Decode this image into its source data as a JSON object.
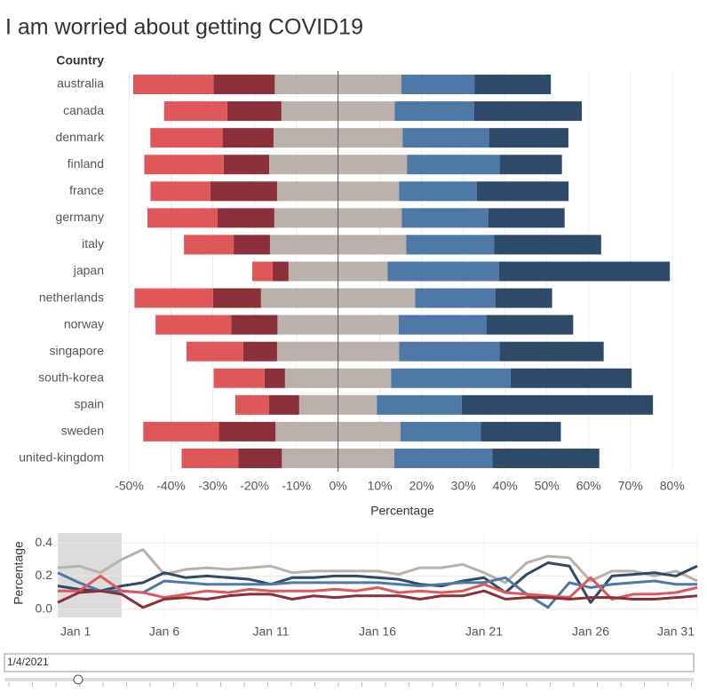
{
  "chart_data": [
    {
      "type": "diverging",
      "title": "I am worried about getting COVID19",
      "category_header": "Country",
      "xlabel": "Percentage",
      "categories": [
        "australia",
        "canada",
        "denmark",
        "finland",
        "france",
        "germany",
        "italy",
        "japan",
        "netherlands",
        "norway",
        "singapore",
        "south-korea",
        "spain",
        "sweden",
        "united-kingdom"
      ],
      "series": [
        {
          "color": "#8b2f3a",
          "side": "left",
          "values": [
            14.7,
            13.0,
            12.2,
            10.9,
            16.0,
            13.6,
            8.7,
            3.8,
            11.5,
            11.1,
            8.1,
            4.9,
            7.2,
            13.6,
            10.4
          ]
        },
        {
          "color": "#e05759",
          "side": "left",
          "values": [
            19.2,
            15.1,
            17.3,
            19.0,
            14.3,
            16.8,
            11.9,
            4.9,
            18.8,
            18.1,
            13.6,
            12.2,
            8.1,
            18.1,
            13.6
          ]
        },
        {
          "color": "#bab0ac",
          "side": "center",
          "values": [
            30.3,
            27.1,
            30.9,
            33.0,
            29.2,
            30.5,
            32.6,
            23.7,
            36.9,
            29.0,
            29.2,
            25.4,
            18.6,
            29.9,
            26.9
          ]
        },
        {
          "color": "#4e79a7",
          "side": "right",
          "values": [
            17.5,
            19.0,
            20.7,
            22.2,
            18.6,
            20.7,
            21.1,
            26.7,
            19.2,
            21.1,
            24.1,
            28.6,
            20.3,
            19.2,
            23.5
          ]
        },
        {
          "color": "#2e4a68",
          "side": "right",
          "values": [
            18.3,
            25.8,
            19.0,
            14.9,
            22.0,
            18.3,
            25.6,
            40.9,
            13.6,
            20.7,
            24.9,
            29.0,
            45.8,
            19.2,
            25.6
          ]
        }
      ],
      "xlim": [
        -55,
        86
      ],
      "xticks": [
        {
          "value": -50,
          "label": "-50%"
        },
        {
          "value": -40,
          "label": "-40%"
        },
        {
          "value": -30,
          "label": "-30%"
        },
        {
          "value": -20,
          "label": "-20%"
        },
        {
          "value": -10,
          "label": "-10%"
        },
        {
          "value": 0,
          "label": "0%"
        },
        {
          "value": 10,
          "label": "10%"
        },
        {
          "value": 20,
          "label": "20%"
        },
        {
          "value": 30,
          "label": "30%"
        },
        {
          "value": 40,
          "label": "40%"
        },
        {
          "value": 50,
          "label": "50%"
        },
        {
          "value": 60,
          "label": "60%"
        },
        {
          "value": 70,
          "label": "70%"
        },
        {
          "value": 80,
          "label": "80%"
        }
      ],
      "grid": true
    },
    {
      "type": "line",
      "ylabel": "Percentage",
      "x": [
        1,
        2,
        3,
        4,
        5,
        6,
        7,
        8,
        9,
        10,
        11,
        12,
        13,
        14,
        15,
        16,
        17,
        18,
        19,
        20,
        21,
        22,
        23,
        24,
        25,
        26,
        27,
        28,
        29,
        30,
        31
      ],
      "highlight": [
        1,
        4
      ],
      "series": [
        {
          "color": "#bab0ac",
          "values": [
            0.25,
            0.26,
            0.22,
            0.3,
            0.36,
            0.21,
            0.24,
            0.25,
            0.24,
            0.25,
            0.26,
            0.22,
            0.23,
            0.23,
            0.23,
            0.23,
            0.21,
            0.25,
            0.25,
            0.27,
            0.22,
            0.16,
            0.28,
            0.32,
            0.31,
            0.17,
            0.23,
            0.23,
            0.2,
            0.23,
            0.17
          ]
        },
        {
          "color": "#2e4a68",
          "values": [
            0.14,
            0.12,
            0.11,
            0.14,
            0.16,
            0.22,
            0.19,
            0.2,
            0.19,
            0.18,
            0.15,
            0.19,
            0.19,
            0.2,
            0.2,
            0.19,
            0.18,
            0.15,
            0.14,
            0.17,
            0.19,
            0.1,
            0.21,
            0.28,
            0.26,
            0.04,
            0.2,
            0.21,
            0.22,
            0.2,
            0.26
          ]
        },
        {
          "color": "#4e79a7",
          "values": [
            0.22,
            0.16,
            0.11,
            0.11,
            0.1,
            0.17,
            0.16,
            0.15,
            0.15,
            0.15,
            0.15,
            0.16,
            0.16,
            0.16,
            0.16,
            0.16,
            0.15,
            0.14,
            0.15,
            0.16,
            0.16,
            0.19,
            0.09,
            0.01,
            0.16,
            0.13,
            0.15,
            0.16,
            0.17,
            0.15,
            0.15
          ]
        },
        {
          "color": "#e05759",
          "values": [
            0.11,
            0.11,
            0.2,
            0.11,
            0.1,
            0.07,
            0.09,
            0.11,
            0.1,
            0.12,
            0.11,
            0.11,
            0.11,
            0.12,
            0.11,
            0.13,
            0.1,
            0.11,
            0.1,
            0.11,
            0.15,
            0.1,
            0.09,
            0.08,
            0.07,
            0.19,
            0.06,
            0.09,
            0.09,
            0.1,
            0.13
          ]
        },
        {
          "color": "#8b2f3a",
          "values": [
            0.04,
            0.1,
            0.11,
            0.09,
            0.01,
            0.06,
            0.07,
            0.06,
            0.08,
            0.09,
            0.09,
            0.06,
            0.08,
            0.07,
            0.08,
            0.08,
            0.08,
            0.06,
            0.08,
            0.08,
            0.11,
            0.06,
            0.07,
            0.07,
            0.06,
            0.07,
            0.07,
            0.06,
            0.06,
            0.07,
            0.08
          ]
        }
      ],
      "xlim": [
        1,
        31
      ],
      "xticks": [
        {
          "value": 1,
          "label": "Jan 1"
        },
        {
          "value": 6,
          "label": "Jan 6"
        },
        {
          "value": 11,
          "label": "Jan 11"
        },
        {
          "value": 16,
          "label": "Jan 16"
        },
        {
          "value": 21,
          "label": "Jan 21"
        },
        {
          "value": 26,
          "label": "Jan 26"
        },
        {
          "value": 31,
          "label": "Jan 31"
        }
      ],
      "ylim": [
        -0.05,
        0.46
      ],
      "yticks": [
        {
          "value": 0,
          "label": "0.0"
        },
        0.2,
        0.4
      ],
      "grid": true
    }
  ],
  "filter": {
    "value": "1/4/2021"
  }
}
